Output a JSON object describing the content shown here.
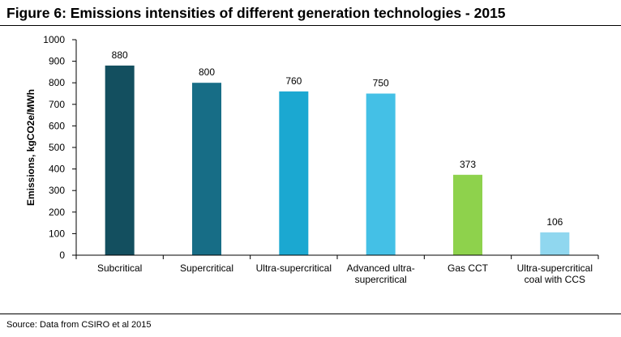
{
  "figure": {
    "title": "Figure 6: Emissions intensities of different generation technologies - 2015",
    "source": "Source: Data from CSIRO et al 2015"
  },
  "chart_data": {
    "type": "bar",
    "title": "Figure 6: Emissions intensities of different generation technologies - 2015",
    "xlabel": "",
    "ylabel": "Emissions, kgCO2e/MWh",
    "ylim": [
      0,
      1000
    ],
    "yticks": [
      0,
      100,
      200,
      300,
      400,
      500,
      600,
      700,
      800,
      900,
      1000
    ],
    "grid": false,
    "legend": "none",
    "categories": [
      [
        "Subcritical"
      ],
      [
        "Supercritical"
      ],
      [
        "Ultra-supercritical"
      ],
      [
        "Advanced ultra-",
        "supercritical"
      ],
      [
        "Gas CCT"
      ],
      [
        "Ultra-supercritical",
        "coal with CCS"
      ]
    ],
    "values": [
      880,
      800,
      760,
      750,
      373,
      106
    ],
    "colors": [
      "#134f5f",
      "#176d86",
      "#1ba8d1",
      "#44c0e6",
      "#8ed24c",
      "#90d7ef"
    ]
  }
}
